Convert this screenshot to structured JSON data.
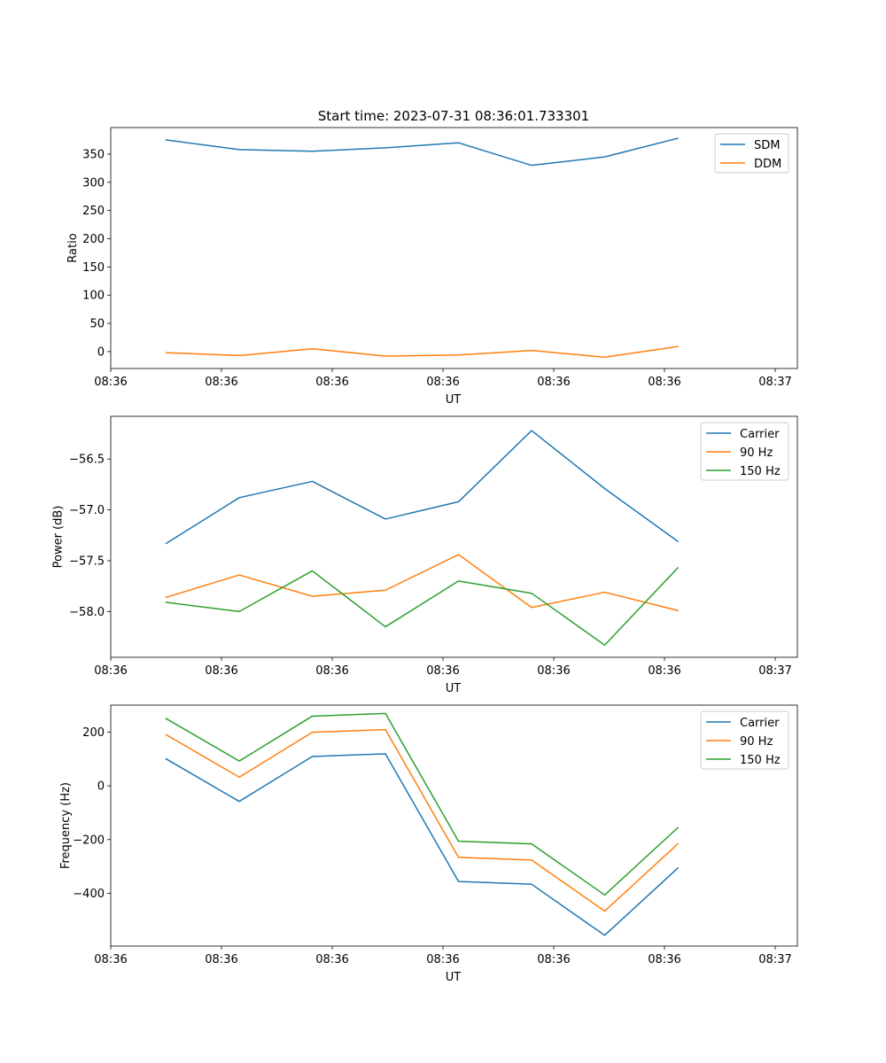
{
  "figure_title": "Start time: 2023-07-31 08:36:01.733301",
  "colors": {
    "c0": "#1f77b4",
    "c1": "#ff7f0e",
    "c2": "#2ca02c"
  },
  "chart_data": [
    {
      "type": "line",
      "title": "Start time: 2023-07-31 08:36:01.733301",
      "xlabel": "UT",
      "ylabel": "Ratio",
      "xlim": [
        0,
        3.1
      ],
      "x_ticks": [
        0.0,
        0.5,
        1.0,
        1.5,
        2.0,
        2.5,
        3.0
      ],
      "x_tick_labels": [
        "08:36",
        "08:36",
        "08:36",
        "08:36",
        "08:36",
        "08:36",
        "08:37"
      ],
      "ylim": [
        -30,
        397
      ],
      "y_ticks": [
        0,
        50,
        100,
        150,
        200,
        250,
        300,
        350
      ],
      "y_tick_labels": [
        "0",
        "50",
        "100",
        "150",
        "200",
        "250",
        "300",
        "350"
      ],
      "x": [
        0.25,
        0.58,
        0.91,
        1.24,
        1.57,
        1.9,
        2.23,
        2.56
      ],
      "legend_loc": "upper right",
      "series": [
        {
          "name": "SDM",
          "color_key": "c0",
          "values": [
            375,
            358,
            355,
            361,
            370,
            330,
            345,
            378
          ]
        },
        {
          "name": "DDM",
          "color_key": "c1",
          "values": [
            -2,
            -7,
            5,
            -8,
            -6,
            2,
            -10,
            9
          ]
        }
      ]
    },
    {
      "type": "line",
      "title": "",
      "xlabel": "UT",
      "ylabel": "Power (dB)",
      "xlim": [
        0,
        3.1
      ],
      "x_ticks": [
        0.0,
        0.5,
        1.0,
        1.5,
        2.0,
        2.5,
        3.0
      ],
      "x_tick_labels": [
        "08:36",
        "08:36",
        "08:36",
        "08:36",
        "08:36",
        "08:36",
        "08:37"
      ],
      "ylim": [
        -58.45,
        -56.08
      ],
      "y_ticks": [
        -58.0,
        -57.5,
        -57.0,
        -56.5
      ],
      "y_tick_labels": [
        "−58.0",
        "−57.5",
        "−57.0",
        "−56.5"
      ],
      "x": [
        0.25,
        0.58,
        0.91,
        1.24,
        1.57,
        1.9,
        2.23,
        2.56
      ],
      "legend_loc": "upper right",
      "series": [
        {
          "name": "Carrier",
          "color_key": "c0",
          "values": [
            -57.33,
            -56.88,
            -56.72,
            -57.09,
            -56.92,
            -56.22,
            -56.79,
            -57.31
          ]
        },
        {
          "name": "90 Hz",
          "color_key": "c1",
          "values": [
            -57.86,
            -57.64,
            -57.85,
            -57.79,
            -57.44,
            -57.96,
            -57.81,
            -57.99
          ]
        },
        {
          "name": "150 Hz",
          "color_key": "c2",
          "values": [
            -57.91,
            -58.0,
            -57.6,
            -58.15,
            -57.7,
            -57.82,
            -58.33,
            -57.57
          ]
        }
      ]
    },
    {
      "type": "line",
      "title": "",
      "xlabel": "UT",
      "ylabel": "Frequency (Hz)",
      "xlim": [
        0,
        3.1
      ],
      "x_ticks": [
        0.0,
        0.5,
        1.0,
        1.5,
        2.0,
        2.5,
        3.0
      ],
      "x_tick_labels": [
        "08:36",
        "08:36",
        "08:36",
        "08:36",
        "08:36",
        "08:36",
        "08:37"
      ],
      "ylim": [
        -596,
        300
      ],
      "y_ticks": [
        -400,
        -200,
        0,
        200
      ],
      "y_tick_labels": [
        "−400",
        "−200",
        "0",
        "200"
      ],
      "x": [
        0.25,
        0.58,
        0.91,
        1.24,
        1.57,
        1.9,
        2.23,
        2.56
      ],
      "legend_loc": "upper right",
      "series": [
        {
          "name": "Carrier",
          "color_key": "c0",
          "values": [
            100,
            -58,
            109,
            119,
            -356,
            -366,
            -556,
            -306
          ]
        },
        {
          "name": "90 Hz",
          "color_key": "c1",
          "values": [
            190,
            32,
            199,
            209,
            -266,
            -276,
            -466,
            -216
          ]
        },
        {
          "name": "150 Hz",
          "color_key": "c2",
          "values": [
            250,
            92,
            259,
            269,
            -206,
            -216,
            -406,
            -156
          ]
        }
      ]
    }
  ]
}
